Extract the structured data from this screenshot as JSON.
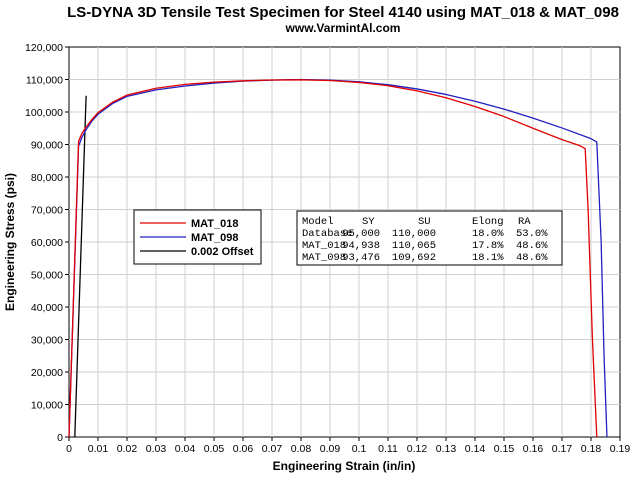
{
  "chart_data": {
    "type": "line",
    "title": "LS-DYNA 3D Tensile Test Specimen for Steel 4140 using MAT_018 & MAT_098",
    "subtitle": "www.VarmintAl.com",
    "xlabel": "Engineering Strain (in/in)",
    "ylabel": "Engineering Stress (psi)",
    "xlim": [
      0,
      0.19
    ],
    "ylim": [
      0,
      120000
    ],
    "xticks": [
      0,
      0.01,
      0.02,
      0.03,
      0.04,
      0.05,
      0.06,
      0.07,
      0.08,
      0.09,
      0.1,
      0.11,
      0.12,
      0.13,
      0.14,
      0.15,
      0.16,
      0.17,
      0.18,
      0.19
    ],
    "xtick_labels": [
      "0",
      "0.01",
      "0.02",
      "0.03",
      "0.04",
      "0.05",
      "0.06",
      "0.07",
      "0.08",
      "0.09",
      "0.1",
      "0.11",
      "0.12",
      "0.13",
      "0.14",
      "0.15",
      "0.16",
      "0.17",
      "0.18",
      "0.19"
    ],
    "yticks": [
      0,
      10000,
      20000,
      30000,
      40000,
      50000,
      60000,
      70000,
      80000,
      90000,
      100000,
      110000,
      120000
    ],
    "ytick_labels": [
      "0",
      "10,000",
      "20,000",
      "30,000",
      "40,000",
      "50,000",
      "60,000",
      "70,000",
      "80,000",
      "90,000",
      "100,000",
      "110,000",
      "120,000"
    ],
    "grid": true,
    "legend_position": "left-center",
    "series": [
      {
        "name": "MAT_018",
        "color": "#e00000",
        "x": [
          0,
          0.0033,
          0.0045,
          0.006,
          0.008,
          0.01,
          0.015,
          0.02,
          0.03,
          0.04,
          0.05,
          0.06,
          0.07,
          0.08,
          0.09,
          0.1,
          0.11,
          0.12,
          0.13,
          0.14,
          0.15,
          0.16,
          0.17,
          0.176,
          0.178,
          0.179,
          0.1805,
          0.182
        ],
        "y": [
          0,
          91000,
          93500,
          95500,
          97800,
          99800,
          103000,
          105200,
          107300,
          108500,
          109200,
          109600,
          109850,
          109900,
          109700,
          109100,
          108100,
          106500,
          104400,
          101700,
          98600,
          95000,
          91500,
          89700,
          88700,
          70000,
          30000,
          0
        ]
      },
      {
        "name": "MAT_098",
        "color": "#2020c0",
        "x": [
          0,
          0.0033,
          0.0045,
          0.006,
          0.008,
          0.01,
          0.015,
          0.02,
          0.03,
          0.04,
          0.05,
          0.06,
          0.07,
          0.08,
          0.09,
          0.1,
          0.11,
          0.12,
          0.13,
          0.14,
          0.15,
          0.16,
          0.17,
          0.18,
          0.182,
          0.1835,
          0.1845,
          0.1855
        ],
        "y": [
          0,
          89500,
          92300,
          94700,
          97300,
          99300,
          102600,
          104800,
          106800,
          108000,
          108900,
          109500,
          109800,
          110000,
          109800,
          109300,
          108400,
          107100,
          105400,
          103300,
          100900,
          98100,
          95100,
          91800,
          90800,
          60000,
          25000,
          0
        ]
      },
      {
        "name": "0.002 Offset",
        "color": "#000000",
        "x": [
          0.002,
          0.0059
        ],
        "y": [
          0,
          105000
        ]
      }
    ],
    "annotations": {
      "table_header": [
        "Model",
        "SY",
        "SU",
        "Elong",
        "RA"
      ],
      "table_rows": [
        [
          "Database",
          "95,000",
          "110,000",
          "18.0%",
          "53.0%"
        ],
        [
          "MAT_018",
          "94,938",
          "110,065",
          "17.8%",
          "48.6%"
        ],
        [
          "MAT_098",
          "93,476",
          "109,692",
          "18.1%",
          "48.6%"
        ]
      ]
    }
  }
}
